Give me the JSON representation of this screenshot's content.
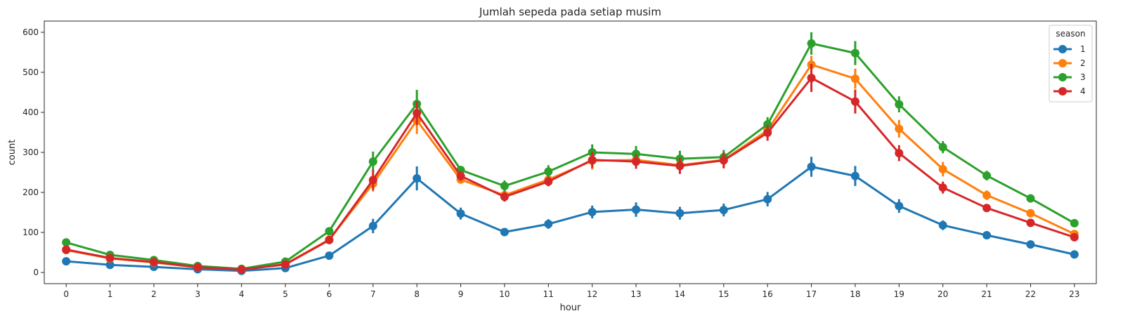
{
  "chart_data": {
    "type": "line",
    "title": "Jumlah sepeda pada setiap musim",
    "xlabel": "hour",
    "ylabel": "count",
    "categories": [
      "0",
      "1",
      "2",
      "3",
      "4",
      "5",
      "6",
      "7",
      "8",
      "9",
      "10",
      "11",
      "12",
      "13",
      "14",
      "15",
      "16",
      "17",
      "18",
      "19",
      "20",
      "21",
      "22",
      "23"
    ],
    "yticks": [
      0,
      100,
      200,
      300,
      400,
      500,
      600
    ],
    "ylim": [
      -28,
      628
    ],
    "grid": false,
    "legend": {
      "title": "season",
      "placement": "top-right"
    },
    "series": [
      {
        "name": "1",
        "color": "#1f77b4",
        "values": [
          28,
          19,
          14,
          8,
          4,
          11,
          42,
          116,
          235,
          147,
          101,
          121,
          151,
          157,
          148,
          156,
          183,
          264,
          241,
          166,
          118,
          93,
          70,
          45
        ],
        "errors": [
          4,
          3,
          3,
          2,
          1,
          2,
          4,
          18,
          30,
          15,
          8,
          12,
          16,
          18,
          16,
          16,
          18,
          25,
          25,
          17,
          12,
          8,
          5,
          4
        ]
      },
      {
        "name": "2",
        "color": "#ff7f0e",
        "values": [
          56,
          35,
          25,
          13,
          7,
          21,
          82,
          222,
          380,
          232,
          193,
          232,
          279,
          281,
          268,
          281,
          355,
          519,
          484,
          359,
          258,
          193,
          148,
          96
        ],
        "errors": [
          5,
          4,
          3,
          2,
          1,
          3,
          6,
          20,
          34,
          10,
          10,
          14,
          22,
          18,
          18,
          20,
          20,
          22,
          25,
          22,
          18,
          12,
          10,
          8
        ]
      },
      {
        "name": "3",
        "color": "#2ca02c",
        "values": [
          75,
          44,
          31,
          16,
          9,
          27,
          103,
          277,
          421,
          256,
          216,
          252,
          300,
          296,
          284,
          288,
          370,
          572,
          548,
          420,
          313,
          242,
          185,
          123
        ],
        "errors": [
          6,
          4,
          4,
          2,
          1,
          3,
          6,
          25,
          35,
          10,
          14,
          16,
          20,
          20,
          20,
          18,
          18,
          28,
          30,
          20,
          15,
          12,
          10,
          8
        ]
      },
      {
        "name": "4",
        "color": "#d62728",
        "values": [
          57,
          36,
          26,
          13,
          7,
          20,
          81,
          231,
          398,
          241,
          189,
          227,
          281,
          277,
          266,
          280,
          349,
          486,
          427,
          298,
          212,
          161,
          124,
          88
        ],
        "errors": [
          5,
          4,
          3,
          2,
          1,
          3,
          5,
          25,
          30,
          12,
          12,
          12,
          20,
          18,
          20,
          20,
          20,
          35,
          30,
          20,
          15,
          10,
          8,
          6
        ]
      }
    ]
  }
}
